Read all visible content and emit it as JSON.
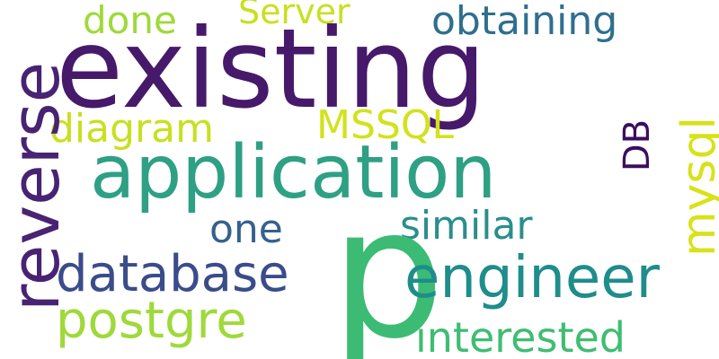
{
  "words": {
    "existing": "existing",
    "application": "application",
    "reverse": "reverse",
    "p": "p",
    "engineer": "engineer",
    "database": "database",
    "postgre": "postgre",
    "obtaining": "obtaining",
    "interested": "interested",
    "similar": "similar",
    "mysql": "mysql",
    "done": "done",
    "diagram": "diagram",
    "mssql": "MSSQL",
    "server": "Server",
    "one": "one",
    "db": "DB"
  },
  "colors": {
    "background": "#ffffff",
    "palette": [
      "#46196b",
      "#2ea084",
      "#1e8d8c",
      "#3a4c8a",
      "#9fd93a",
      "#2f6f8e",
      "#3fbd72",
      "#d2e21b",
      "#36618d",
      "#3cbb75",
      "#482373",
      "#3b0f5e"
    ]
  }
}
